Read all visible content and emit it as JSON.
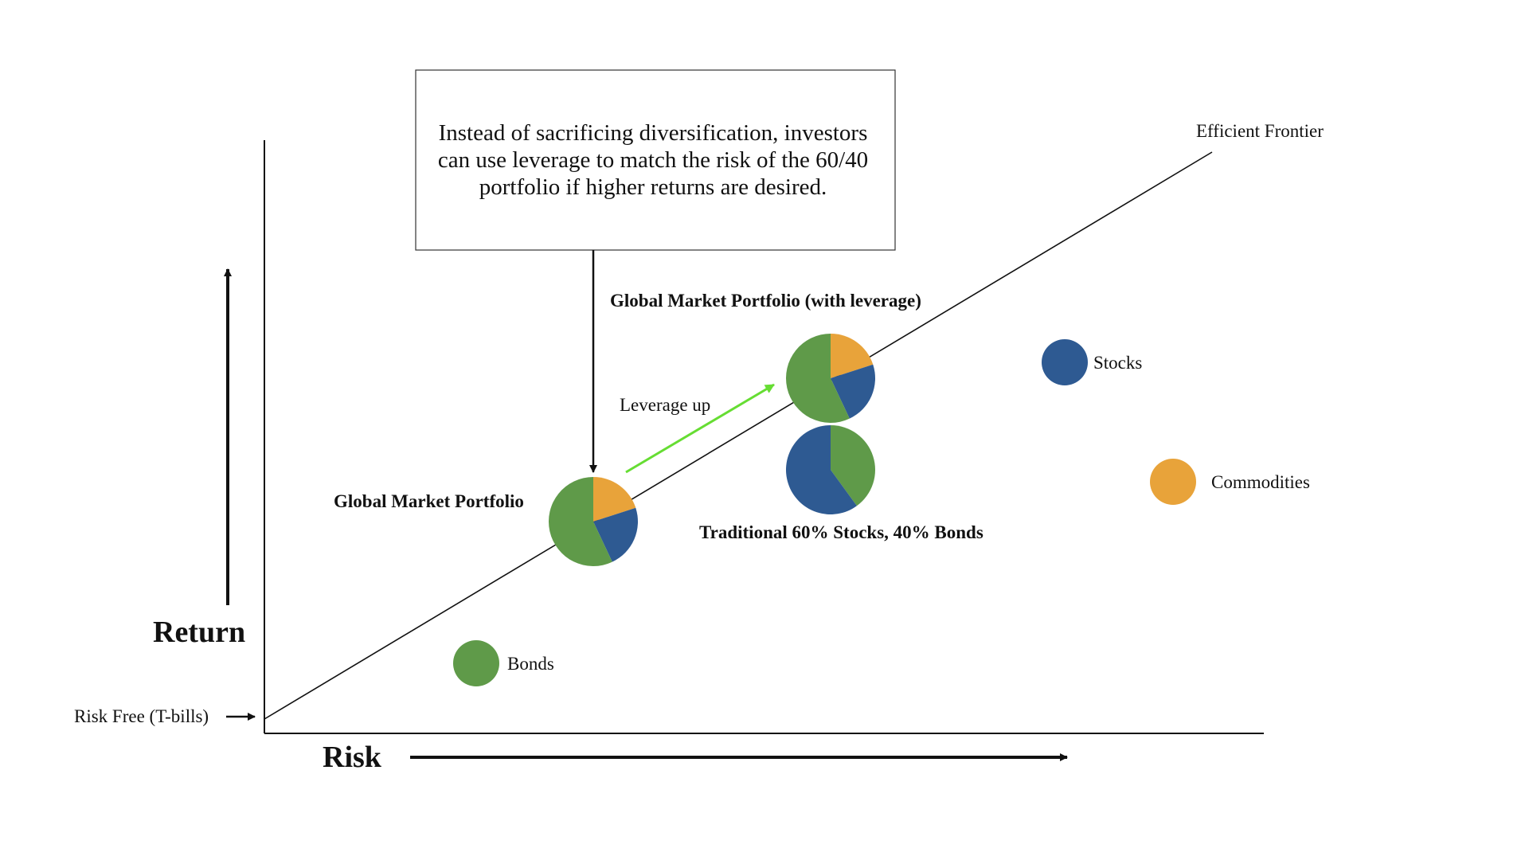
{
  "callout": {
    "text": "Instead of sacrificing diversification, investors can use leverage to match the risk of the 60/40 portfolio if higher returns are desired."
  },
  "axes": {
    "x_label": "Risk",
    "y_label": "Return"
  },
  "labels": {
    "risk_free": "Risk Free (T-bills)",
    "efficient_frontier": "Efficient Frontier",
    "leverage_up": "Leverage up",
    "global_market_portfolio": "Global Market Portfolio",
    "global_market_portfolio_leverage": "Global Market Portfolio (with leverage)",
    "traditional_60_40": "Traditional 60% Stocks, 40% Bonds",
    "stocks": "Stocks",
    "bonds": "Bonds",
    "commodities": "Commodities"
  },
  "colors": {
    "stocks": "#2e5a92",
    "bonds": "#5f9a49",
    "commodities": "#e8a33a",
    "leverage_arrow": "#66dd33",
    "line": "#111111"
  },
  "portfolios": {
    "global_market": {
      "bonds": 0.57,
      "stocks": 0.23,
      "commodities": 0.2
    },
    "traditional_60_40": {
      "stocks": 0.6,
      "bonds": 0.4
    }
  }
}
